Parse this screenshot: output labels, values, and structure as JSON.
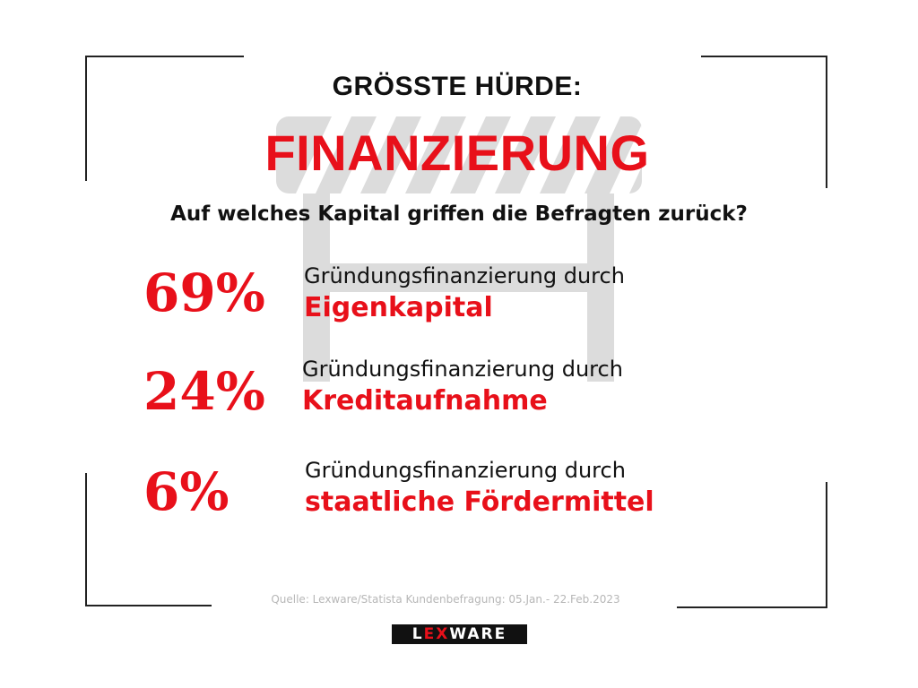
{
  "header": {
    "eyebrow": "GRÖSSTE HÜRDE:",
    "title": "FINANZIERUNG",
    "question": "Auf welches Kapital griffen die Befragten zurück?"
  },
  "stats": [
    {
      "percent": "69%",
      "label": "Gründungsfinanzierung durch",
      "highlight": "Eigenkapital"
    },
    {
      "percent": "24%",
      "label": "Gründungsfinanzierung durch",
      "highlight": "Kreditaufnahme"
    },
    {
      "percent": "6%",
      "label": "Gründungsfinanzierung durch",
      "highlight": "staatliche Fördermittel"
    }
  ],
  "footer": {
    "source": "Quelle: Lexware/Statista Kundenbefragung: 05.Jan.- 22.Feb.2023",
    "logo_prefix": "L",
    "logo_ex": "EX",
    "logo_suffix": "WARE"
  },
  "colors": {
    "accent": "#e8101a",
    "text": "#111111",
    "barrier": "#d9d9d9",
    "source": "#b7b7b7"
  },
  "icons": [
    "road-barrier-icon"
  ]
}
